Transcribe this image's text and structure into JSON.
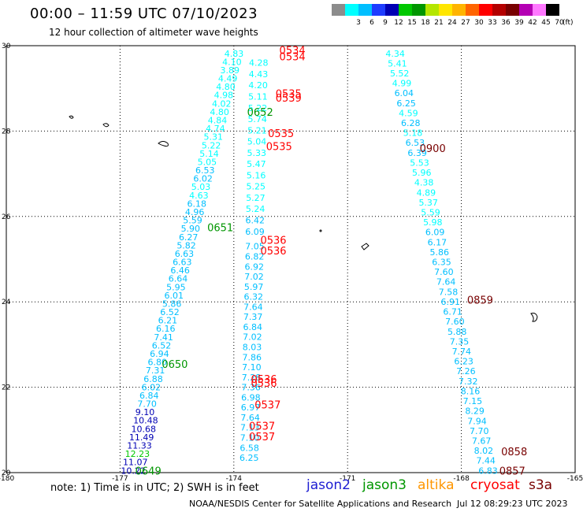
{
  "title": "00:00 – 11:59 UTC 07/10/2023",
  "subtitle": "12 hour collection of altimeter wave heights",
  "colorbar": {
    "ranges": [
      {
        "label": "",
        "color": "#8c8c8c"
      },
      {
        "label": "3",
        "color": "#00ffff"
      },
      {
        "label": "6",
        "color": "#00bfff"
      },
      {
        "label": "9",
        "color": "#1e3cff"
      },
      {
        "label": "12",
        "color": "#0000b4"
      },
      {
        "label": "15",
        "color": "#00c800"
      },
      {
        "label": "18",
        "color": "#009600"
      },
      {
        "label": "21",
        "color": "#b4e600"
      },
      {
        "label": "24",
        "color": "#ffe600"
      },
      {
        "label": "27",
        "color": "#ffb400"
      },
      {
        "label": "30",
        "color": "#ff6400"
      },
      {
        "label": "33",
        "color": "#ff0000"
      },
      {
        "label": "36",
        "color": "#b40000"
      },
      {
        "label": "39",
        "color": "#780000"
      },
      {
        "label": "42",
        "color": "#b400b4"
      },
      {
        "label": "45",
        "color": "#ff78ff"
      },
      {
        "label": "70",
        "color": "#000000"
      }
    ],
    "unit": "(ft)"
  },
  "axes": {
    "x_ticks": [
      "-180",
      "-177",
      "-174",
      "-171",
      "-168",
      "-165"
    ],
    "y_ticks": [
      "20",
      "22",
      "24",
      "26",
      "28",
      "30"
    ],
    "lon_range": [
      -180,
      -165
    ],
    "lat_range": [
      20,
      30
    ]
  },
  "tracks": [
    {
      "name": "track-west",
      "lon_start": -176.98,
      "lat_start": 20.05,
      "lon_end": -174.25,
      "lat_end": 29.82,
      "values": [
        "10.22",
        "11.07",
        "12.23",
        "11.33",
        "11.49",
        "10.68",
        "10.48",
        "9.10",
        "7.70",
        "6.84",
        "6.02",
        "6.88",
        "7.31",
        "6.80",
        "6.94",
        "6.52",
        "7.41",
        "6.16",
        "6.21",
        "6.52",
        "5.86",
        "6.01",
        "5.95",
        "6.64",
        "6.46",
        "6.63",
        "6.63",
        "5.82",
        "6.27",
        "5.90",
        "5.59",
        "4.96",
        "6.18",
        "4.63",
        "5.03",
        "6.02",
        "6.53",
        "5.05",
        "5.14",
        "5.22",
        "5.31",
        "4.74",
        "4.84",
        "4.80",
        "4.02",
        "4.98",
        "4.80",
        "4.49",
        "3.89",
        "4.10",
        "4.83"
      ],
      "colors": [
        "#0000b4",
        "#0000b4",
        "#00c800",
        "#0000b4",
        "#0000b4",
        "#0000b4",
        "#0000b4",
        "#0000b4",
        "#00bfff",
        "#00bfff",
        "#00bfff",
        "#00bfff",
        "#00bfff",
        "#00bfff",
        "#00bfff",
        "#00bfff",
        "#00bfff",
        "#00bfff",
        "#00bfff",
        "#00bfff",
        "#00bfff",
        "#00bfff",
        "#00bfff",
        "#00bfff",
        "#00bfff",
        "#00bfff",
        "#00bfff",
        "#00bfff",
        "#00bfff",
        "#00bfff",
        "#00bfff",
        "#00bfff",
        "#00bfff",
        "#00ffff",
        "#00ffff",
        "#00bfff",
        "#00bfff",
        "#00ffff",
        "#00ffff",
        "#00ffff",
        "#00ffff",
        "#00ffff",
        "#00ffff",
        "#00ffff",
        "#00ffff",
        "#00ffff",
        "#00ffff",
        "#00ffff",
        "#00ffff",
        "#00ffff",
        "#00ffff"
      ]
    },
    {
      "name": "track-mid-upper",
      "lon_start": -173.6,
      "lat_start": 29.6,
      "lon_end": -173.7,
      "lat_end": 25.65,
      "values": [
        "4.28",
        "4.43",
        "4.20",
        "5.11",
        "5.22",
        "5.74",
        "5.21",
        "5.04",
        "5.33",
        "5.47",
        "5.16",
        "5.25",
        "5.27",
        "5.24",
        "6.42",
        "6.09"
      ],
      "colors": [
        "#00ffff",
        "#00ffff",
        "#00ffff",
        "#00ffff",
        "#00ffff",
        "#00ffff",
        "#00ffff",
        "#00ffff",
        "#00ffff",
        "#00ffff",
        "#00ffff",
        "#00ffff",
        "#00ffff",
        "#00ffff",
        "#00bfff",
        "#00bfff"
      ]
    },
    {
      "name": "track-mid-lower",
      "lon_start": -173.7,
      "lat_start": 25.3,
      "lon_end": -173.85,
      "lat_end": 20.35,
      "values": [
        "7.05",
        "6.82",
        "6.92",
        "7.02",
        "5.97",
        "6.32",
        "7.64",
        "7.37",
        "6.84",
        "7.02",
        "8.03",
        "7.86",
        "7.10",
        "7.28",
        "7.36",
        "6.98",
        "6.97",
        "7.64",
        "7.13",
        "7.10",
        "6.58",
        "6.25"
      ],
      "colors": [
        "#00bfff",
        "#00bfff",
        "#00bfff",
        "#00bfff",
        "#00bfff",
        "#00bfff",
        "#00bfff",
        "#00bfff",
        "#00bfff",
        "#00bfff",
        "#00bfff",
        "#00bfff",
        "#00bfff",
        "#00bfff",
        "#00bfff",
        "#00bfff",
        "#00bfff",
        "#00bfff",
        "#00bfff",
        "#00bfff",
        "#00bfff",
        "#00bfff"
      ]
    },
    {
      "name": "track-east",
      "lon_start": -170.0,
      "lat_start": 29.82,
      "lon_end": -167.55,
      "lat_end": 20.05,
      "values": [
        "4.34",
        "5.41",
        "5.52",
        "4.99",
        "6.04",
        "6.25",
        "4.59",
        "6.28",
        "5.18",
        "6.53",
        "6.39",
        "5.53",
        "5.96",
        "4.38",
        "4.89",
        "5.37",
        "5.59",
        "5.98",
        "6.09",
        "6.17",
        "5.86",
        "6.35",
        "7.60",
        "7.64",
        "7.58",
        "6.91",
        "6.71",
        "7.60",
        "5.88",
        "7.35",
        "7.74",
        "6.23",
        "7.26",
        "7.32",
        "8.16",
        "7.15",
        "8.29",
        "7.94",
        "7.70",
        "7.67",
        "8.02",
        "7.44",
        "6.83"
      ],
      "colors": [
        "#00ffff",
        "#00ffff",
        "#00ffff",
        "#00ffff",
        "#00bfff",
        "#00bfff",
        "#00ffff",
        "#00bfff",
        "#00ffff",
        "#00bfff",
        "#00bfff",
        "#00ffff",
        "#00ffff",
        "#00ffff",
        "#00ffff",
        "#00ffff",
        "#00ffff",
        "#00ffff",
        "#00bfff",
        "#00bfff",
        "#00bfff",
        "#00bfff",
        "#00bfff",
        "#00bfff",
        "#00bfff",
        "#00bfff",
        "#00bfff",
        "#00bfff",
        "#00bfff",
        "#00bfff",
        "#00bfff",
        "#00bfff",
        "#00bfff",
        "#00bfff",
        "#00bfff",
        "#00bfff",
        "#00bfff",
        "#00bfff",
        "#00bfff",
        "#00bfff",
        "#00bfff",
        "#00bfff",
        "#00bfff"
      ]
    }
  ],
  "time_labels": [
    {
      "text": "0534",
      "lon": -172.8,
      "lat": 29.9,
      "color": "#ff0000"
    },
    {
      "text": "0534",
      "lon": -172.8,
      "lat": 29.75,
      "color": "#ff0000"
    },
    {
      "text": "0535",
      "lon": -172.9,
      "lat": 28.88,
      "color": "#ff0000"
    },
    {
      "text": "0539",
      "lon": -172.9,
      "lat": 28.78,
      "color": "#ff0000"
    },
    {
      "text": "0652",
      "lon": -173.65,
      "lat": 28.45,
      "color": "#009600"
    },
    {
      "text": "0535",
      "lon": -173.1,
      "lat": 27.95,
      "color": "#ff0000"
    },
    {
      "text": "0535",
      "lon": -173.15,
      "lat": 27.65,
      "color": "#ff0000"
    },
    {
      "text": "0900",
      "lon": -169.1,
      "lat": 27.6,
      "color": "#780000"
    },
    {
      "text": "0651",
      "lon": -174.7,
      "lat": 25.75,
      "color": "#009600"
    },
    {
      "text": "0536",
      "lon": -173.3,
      "lat": 25.45,
      "color": "#ff0000"
    },
    {
      "text": "0536",
      "lon": -173.3,
      "lat": 25.2,
      "color": "#ff0000"
    },
    {
      "text": "0859",
      "lon": -167.85,
      "lat": 24.05,
      "color": "#780000"
    },
    {
      "text": "0650",
      "lon": -175.9,
      "lat": 22.55,
      "color": "#009600"
    },
    {
      "text": "0536",
      "lon": -173.55,
      "lat": 22.2,
      "color": "#ff0000"
    },
    {
      "text": "0536",
      "lon": -173.55,
      "lat": 22.1,
      "color": "#ff0000"
    },
    {
      "text": "0537",
      "lon": -173.45,
      "lat": 21.6,
      "color": "#ff0000"
    },
    {
      "text": "0537",
      "lon": -173.6,
      "lat": 21.1,
      "color": "#ff0000"
    },
    {
      "text": "0537",
      "lon": -173.6,
      "lat": 20.85,
      "color": "#ff0000"
    },
    {
      "text": "0858",
      "lon": -166.95,
      "lat": 20.5,
      "color": "#780000"
    },
    {
      "text": "0857",
      "lon": -167.0,
      "lat": 20.05,
      "color": "#780000"
    },
    {
      "text": "0649",
      "lon": -176.6,
      "lat": 20.05,
      "color": "#009600"
    }
  ],
  "footer": {
    "note": "note:  1) Time is in UTC;  2) SWH is in feet",
    "legend": [
      {
        "label": "jason2",
        "color": "#1e1ed2"
      },
      {
        "label": "jason3",
        "color": "#009600"
      },
      {
        "label": "altika",
        "color": "#ff9600"
      },
      {
        "label": "cryosat",
        "color": "#ff0000"
      },
      {
        "label": "s3a",
        "color": "#780000"
      }
    ],
    "credit": "NOAA/NESDIS Center for Satellite Applications and Research",
    "timestamp": "Jul 12 08:29:23 UTC 2023"
  }
}
